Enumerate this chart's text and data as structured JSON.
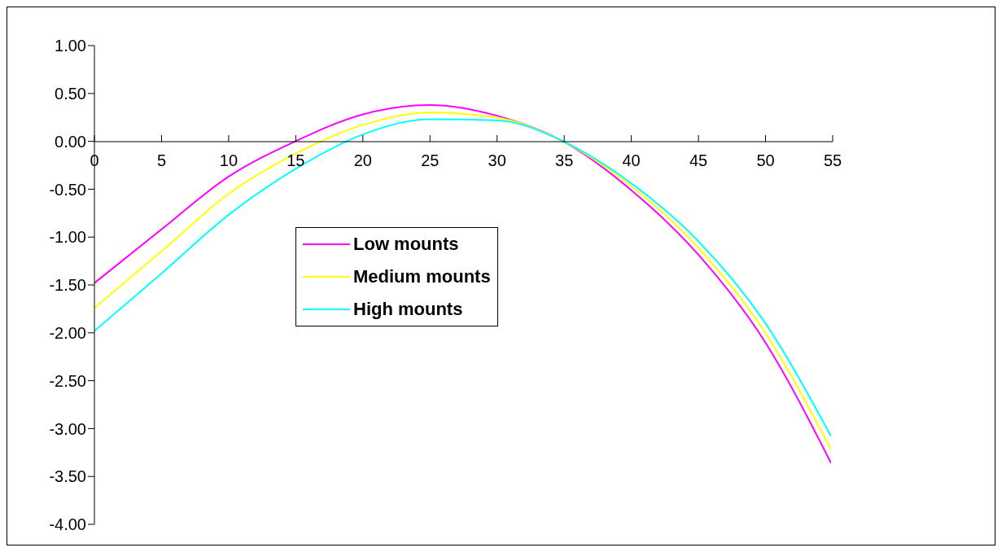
{
  "chart_data": {
    "type": "line",
    "x": [
      0,
      5,
      10,
      15,
      20,
      25,
      30,
      35,
      40,
      45,
      50,
      55
    ],
    "series": [
      {
        "name": "Low mounts",
        "color": "#ff00ff",
        "values": [
          -1.48,
          -0.92,
          -0.37,
          0.0,
          0.28,
          0.38,
          0.27,
          0.0,
          -0.5,
          -1.17,
          -2.08,
          -3.36
        ]
      },
      {
        "name": "Medium mounts",
        "color": "#ffff00",
        "values": [
          -1.74,
          -1.15,
          -0.55,
          -0.13,
          0.17,
          0.3,
          0.25,
          0.0,
          -0.46,
          -1.1,
          -1.98,
          -3.22
        ]
      },
      {
        "name": "High mounts",
        "color": "#00ffff",
        "values": [
          -1.98,
          -1.38,
          -0.77,
          -0.29,
          0.07,
          0.23,
          0.22,
          0.0,
          -0.43,
          -1.03,
          -1.88,
          -3.08
        ]
      }
    ],
    "xlim": [
      0,
      55
    ],
    "xticks": [
      0,
      5,
      10,
      15,
      20,
      25,
      30,
      35,
      40,
      45,
      50,
      55
    ],
    "ylim": [
      -4,
      1
    ],
    "yticks": [
      {
        "value": 1,
        "label": "1.00"
      },
      {
        "value": 0.5,
        "label": "0.50"
      },
      {
        "value": 0,
        "label": "0.00"
      },
      {
        "value": -0.5,
        "label": "-0.50"
      },
      {
        "value": -1,
        "label": "-1.00"
      },
      {
        "value": -1.5,
        "label": "-1.50"
      },
      {
        "value": -2,
        "label": "-2.00"
      },
      {
        "value": -2.5,
        "label": "-2.50"
      },
      {
        "value": -3,
        "label": "-3.00"
      },
      {
        "value": -3.5,
        "label": "-3.50"
      },
      {
        "value": -4,
        "label": "-4.00"
      }
    ],
    "grid": false,
    "legend": "left",
    "marker": "none",
    "line_style": "solid"
  }
}
